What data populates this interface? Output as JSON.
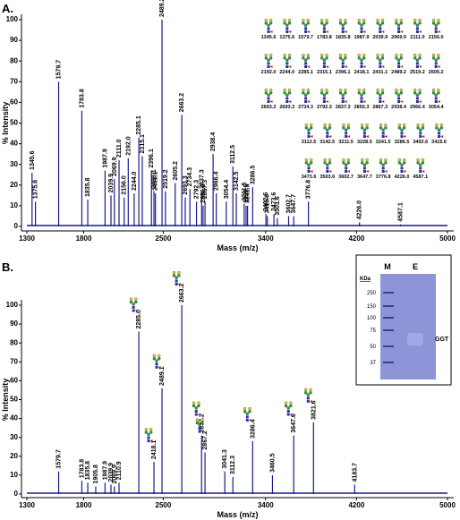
{
  "panel_labels": [
    "A.",
    "B."
  ],
  "chart_data": [
    {
      "type": "spectrum",
      "y_label": "% Intensity",
      "x_label": "Mass (m/z)",
      "color": "#1a1a8c",
      "xlim": [
        1300,
        5000
      ],
      "xticks": [
        1300,
        1800,
        2500,
        3400,
        4200,
        5000
      ],
      "ylim": [
        0,
        100
      ],
      "yticks": [
        0,
        10,
        20,
        30,
        40,
        50,
        60,
        70,
        80,
        90,
        100
      ],
      "x": [
        1345.6,
        1375.6,
        1579.7,
        1783.8,
        1835.8,
        1987.9,
        2039.9,
        2069.9,
        2111.0,
        2156.0,
        2192.0,
        2244.0,
        2285.1,
        2315.1,
        2396.1,
        2418.1,
        2431.1,
        2489.2,
        2519.2,
        2605.2,
        2663.2,
        2693.3,
        2734.3,
        2792.3,
        2837.3,
        2850.3,
        2867.3,
        2938.4,
        2966.4,
        3054.4,
        3112.5,
        3142.5,
        3211.5,
        3228.5,
        3241.5,
        3286.5,
        3402.6,
        3415.6,
        3473.6,
        3503.6,
        3602.7,
        3647.7,
        3776.8,
        4226.0,
        4587.1
      ],
      "x_labels": [
        "1345.6",
        "1375.6",
        "1579.7",
        "1783.8",
        "1835.8",
        "1987.9",
        "2039.9",
        "2069.9",
        "2111.0",
        "2156.0",
        "2192.0",
        "2244.0",
        "2285.1",
        "2315.1",
        "2396.1",
        "2418.1",
        "2431.1",
        "2489.2",
        "2519.2",
        "2605.2",
        "2663.2",
        "2693.3",
        "2734.3",
        "2792.3",
        "2837.3",
        "2850.3",
        "2867.3",
        "2938.4",
        "2966.4",
        "3054.4",
        "3112.5",
        "3142.5",
        "3211.5",
        "3228.5",
        "3241.5",
        "3286.5",
        "3402.6",
        "3415.6",
        "3473.6",
        "3503.6",
        "3602.7",
        "3647.7",
        "3776.8",
        "4226.0",
        "4587.1"
      ],
      "values": [
        26,
        12,
        70,
        56,
        13,
        27,
        15,
        23,
        32,
        14,
        33,
        16,
        43,
        34,
        27,
        17,
        16,
        100,
        17,
        21,
        54,
        14,
        18,
        12,
        17,
        10,
        12,
        35,
        16,
        12,
        29,
        16,
        11,
        10,
        10,
        19,
        6,
        5,
        6,
        4,
        5,
        5,
        12,
        2,
        1
      ],
      "structure_labels": [
        "1345.6",
        "1375.6",
        "1579.7",
        "1783.8",
        "1835.8",
        "1987.9",
        "2039.9",
        "2069.9",
        "2111.0",
        "2156.0",
        "2192.0",
        "2244.0",
        "2285.1",
        "2315.1",
        "2396.1",
        "2418.1",
        "2431.1",
        "2489.2",
        "2519.2",
        "2605.2",
        "2663.2",
        "2693.3",
        "2734.3",
        "2792.3",
        "2837.3",
        "2850.3",
        "2867.3",
        "2938.4",
        "2966.4",
        "3054.4",
        "3112.5",
        "3142.5",
        "3211.5",
        "3228.5",
        "3241.5",
        "3286.5",
        "3402.6",
        "3415.6",
        "3473.6",
        "3503.6",
        "3602.7",
        "3647.7",
        "3776.8",
        "4226.0",
        "4587.1"
      ]
    },
    {
      "type": "spectrum",
      "y_label": "% Intensity",
      "x_label": "Mass (m/z)",
      "color": "#1a1a8c",
      "xlim": [
        1300,
        5000
      ],
      "xticks": [
        1300,
        1800,
        2500,
        3400,
        4200,
        5000
      ],
      "ylim": [
        0,
        100
      ],
      "yticks": [
        0,
        10,
        20,
        30,
        40,
        50,
        60,
        70,
        80,
        90,
        100
      ],
      "x": [
        1579.7,
        1783.8,
        1835.8,
        1905.8,
        1987.9,
        2039.9,
        2069.9,
        2110.9,
        2285.0,
        2418.1,
        2489.1,
        2663.2,
        2837.2,
        2867.2,
        3041.3,
        3112.3,
        3286.4,
        3460.5,
        3647.6,
        3821.6,
        4183.7
      ],
      "x_labels": [
        "1579.7",
        "1783.8",
        "1835.8",
        "1905.8",
        "1987.9",
        "2039.9",
        "2069.9",
        "2110.9",
        "2285.0",
        "2418.1",
        "2489.1",
        "2663.2",
        "2837.2",
        "2867.2",
        "3041.3",
        "3112.3",
        "3286.4",
        "3460.5",
        "3647.6",
        "3821.6",
        "4183.7"
      ],
      "values": [
        12,
        7,
        6,
        4,
        6,
        5,
        4,
        6,
        86,
        17,
        56,
        100,
        31,
        22,
        12,
        9,
        28,
        10,
        31,
        38,
        5
      ]
    }
  ],
  "gel": {
    "lane_labels": [
      "M",
      "E"
    ],
    "unit": "KDa",
    "markers": [
      250,
      150,
      100,
      75,
      50,
      37
    ],
    "band_label": "GGT"
  }
}
